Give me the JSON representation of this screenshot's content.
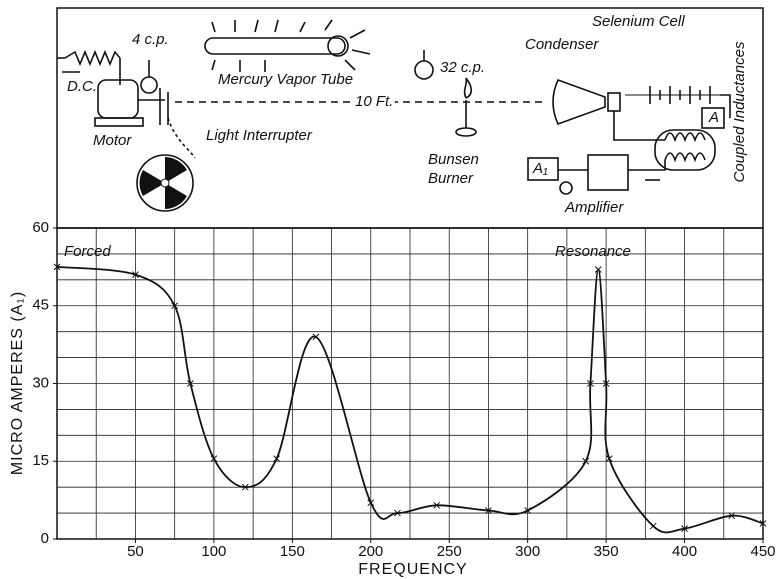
{
  "diagram": {
    "labels": {
      "dc": "D.C.",
      "lamp_small": "4 c.p.",
      "tube": "Mercury Vapor Tube",
      "lamp_large": "32 c.p.",
      "distance": "10 Ft.",
      "condenser": "Condenser",
      "selenium": "Selenium Cell",
      "coupled": "Coupled Inductances",
      "meter_a": "A",
      "motor": "Motor",
      "interrupter": "Light Interrupter",
      "burner": [
        "Bunsen",
        "Burner"
      ],
      "meter_a1": "A₁",
      "amplifier": "Amplifier"
    }
  },
  "chart_data": {
    "type": "line",
    "xlabel": "FREQUENCY",
    "ylabel": "MICRO AMPERES (A₁)",
    "annotations": [
      "Forced",
      "Resonance"
    ],
    "x": [
      0,
      50,
      75,
      85,
      100,
      120,
      140,
      165,
      200,
      217,
      242,
      275,
      300,
      337,
      340,
      345,
      350,
      352,
      380,
      400,
      430,
      450
    ],
    "series": [
      {
        "color": "#111111",
        "values": [
          52.5,
          51,
          45,
          30,
          15.5,
          10,
          15.5,
          39,
          7,
          5,
          6.5,
          5.5,
          5.5,
          15,
          30,
          52,
          30,
          15.5,
          2.5,
          2,
          4.5,
          3
        ]
      }
    ],
    "xlim": [
      0,
      450
    ],
    "ylim": [
      0,
      60
    ],
    "xticks": [
      50,
      100,
      150,
      200,
      250,
      300,
      350,
      400,
      450
    ],
    "yticks": [
      0,
      15,
      30,
      45,
      60
    ],
    "xgrid": [
      0,
      25,
      50,
      75,
      100,
      125,
      150,
      175,
      200,
      225,
      250,
      275,
      300,
      325,
      350,
      375,
      400,
      425,
      450
    ],
    "ygrid": [
      0,
      5,
      10,
      15,
      20,
      25,
      30,
      35,
      40,
      45,
      50,
      55,
      60
    ],
    "grid": true,
    "markers": true
  }
}
